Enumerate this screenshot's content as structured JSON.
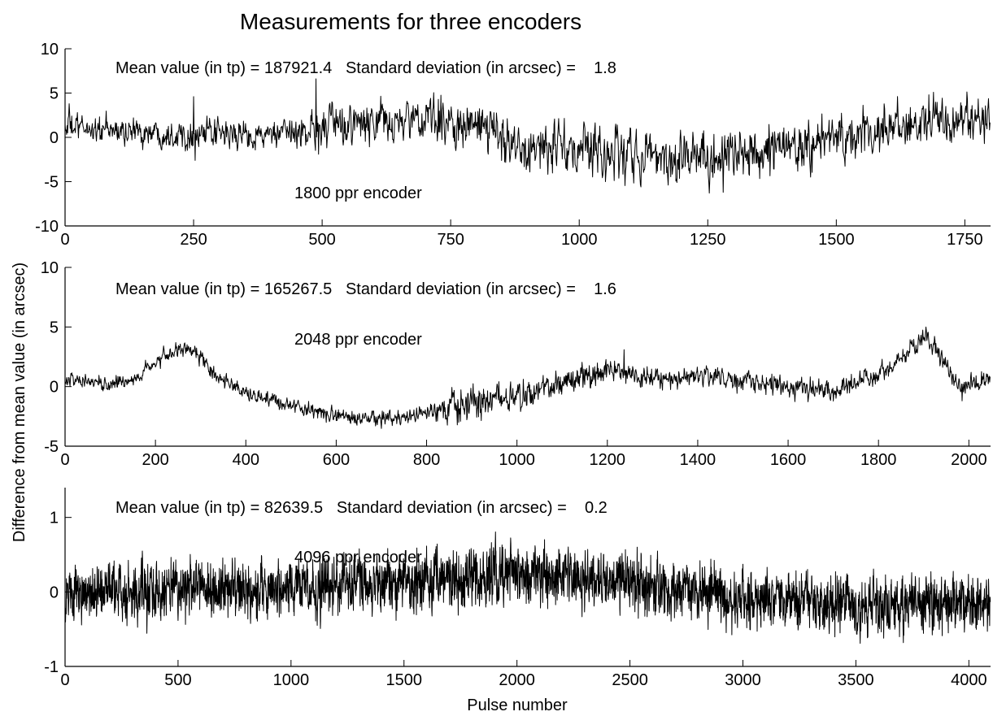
{
  "figure": {
    "title": "Measurements for three encoders",
    "xlabel": "Pulse number",
    "ylabel": "Difference from mean value (in arcsec)"
  },
  "colors": {
    "line": "#000000",
    "axes": "#000000",
    "background": "#ffffff"
  },
  "chart_data": [
    {
      "type": "line",
      "title": "Measurements for three encoders",
      "xlabel": "",
      "ylabel": "",
      "xlim": [
        0,
        1800
      ],
      "ylim": [
        -10,
        10
      ],
      "xticks": [
        0,
        250,
        500,
        750,
        1000,
        1250,
        1500,
        1750
      ],
      "yticks": [
        -10,
        -5,
        0,
        5,
        10
      ],
      "xtick_labels": [
        "0",
        "250",
        "500",
        "750",
        "1000",
        "1250",
        "1500",
        "1750"
      ],
      "ytick_labels": [
        "-10",
        "-5",
        "0",
        "5",
        "10"
      ],
      "grid": false,
      "annotations": {
        "stats": "Mean value (in tp) = 187921.4   Standard deviation (in arcsec) =    1.8",
        "label": "1800 ppr encoder"
      },
      "series": [
        {
          "n_points": 1800,
          "trend": {
            "x": [
              0,
              100,
              240,
              420,
              500,
              600,
              720,
              800,
              900,
              1050,
              1200,
              1300,
              1400,
              1500,
              1600,
              1700,
              1800
            ],
            "y": [
              1.2,
              0.7,
              0.4,
              0.2,
              1.2,
              1.5,
              2.0,
              1.2,
              -1.0,
              -1.8,
              -2.2,
              -2.0,
              -1.2,
              -0.2,
              0.8,
              1.8,
              2.3
            ]
          },
          "noise_amplitude": [
            {
              "x": [
                0,
                450,
                500,
                800,
                1000,
                1800
              ],
              "a": [
                0.9,
                0.9,
                1.4,
                1.5,
                1.8,
                1.5
              ]
            }
          ],
          "spikes": [
            {
              "x": 8,
              "y": 3.8
            },
            {
              "x": 250,
              "y": 4.6
            },
            {
              "x": 253,
              "y": -2.6
            },
            {
              "x": 488,
              "y": 6.6
            },
            {
              "x": 493,
              "y": -1.9
            },
            {
              "x": 1280,
              "y": -6.2
            },
            {
              "x": 1680,
              "y": 4.8
            }
          ]
        }
      ]
    },
    {
      "type": "line",
      "title": "",
      "xlabel": "",
      "ylabel": "",
      "xlim": [
        0,
        2048
      ],
      "ylim": [
        -5,
        10
      ],
      "xticks": [
        0,
        200,
        400,
        600,
        800,
        1000,
        1200,
        1400,
        1600,
        1800,
        2000
      ],
      "yticks": [
        -5,
        0,
        5,
        10
      ],
      "xtick_labels": [
        "0",
        "200",
        "400",
        "600",
        "800",
        "1000",
        "1200",
        "1400",
        "1600",
        "1800",
        "2000"
      ],
      "ytick_labels": [
        "-5",
        "0",
        "5",
        "10"
      ],
      "grid": false,
      "annotations": {
        "stats": "Mean value (in tp) = 165267.5   Standard deviation (in arcsec) =    1.6",
        "label": "2048 ppr encoder"
      },
      "series": [
        {
          "n_points": 2048,
          "trend": {
            "x": [
              0,
              100,
              150,
              200,
              250,
              290,
              330,
              400,
              500,
              600,
              700,
              800,
              900,
              1000,
              1100,
              1200,
              1250,
              1300,
              1400,
              1500,
              1600,
              1700,
              1800,
              1850,
              1900,
              1940,
              1980,
              2000,
              2048
            ],
            "y": [
              0.6,
              0.2,
              0.5,
              2.0,
              3.0,
              2.8,
              1.0,
              -0.6,
              -1.5,
              -2.5,
              -2.8,
              -2.3,
              -1.2,
              -0.8,
              0.2,
              1.4,
              1.2,
              0.7,
              0.9,
              0.4,
              0.0,
              -0.4,
              1.0,
              2.5,
              4.2,
              2.5,
              0.0,
              0.3,
              0.6
            ]
          },
          "noise_amplitude": [
            {
              "x": [
                0,
                800,
                850,
                1100,
                1300,
                2048
              ],
              "a": [
                0.35,
                0.35,
                0.8,
                0.7,
                0.5,
                0.45
              ]
            }
          ],
          "spikes": [
            {
              "x": 1237,
              "y": 3.1
            },
            {
              "x": 1905,
              "y": 5.0
            },
            {
              "x": 1985,
              "y": -1.2
            }
          ]
        }
      ]
    },
    {
      "type": "line",
      "title": "",
      "xlabel": "Pulse number",
      "ylabel": "",
      "xlim": [
        0,
        4096
      ],
      "ylim": [
        -1,
        1.4
      ],
      "xticks": [
        0,
        500,
        1000,
        1500,
        2000,
        2500,
        3000,
        3500,
        4000
      ],
      "yticks": [
        -1,
        0,
        1
      ],
      "xtick_labels": [
        "0",
        "500",
        "1000",
        "1500",
        "2000",
        "2500",
        "3000",
        "3500",
        "4000"
      ],
      "ytick_labels": [
        "-1",
        "0",
        "1"
      ],
      "grid": false,
      "annotations": {
        "stats": "Mean value (in tp) = 82639.5   Standard deviation (in arcsec) =    0.2",
        "label": "4096 ppr encoder"
      },
      "series": [
        {
          "n_points": 4096,
          "trend": {
            "x": [
              0,
              500,
              1000,
              1500,
              2000,
              2500,
              3000,
              3500,
              4096
            ],
            "y": [
              -0.05,
              0.0,
              0.05,
              0.15,
              0.25,
              0.15,
              -0.08,
              -0.18,
              -0.15
            ]
          },
          "noise_amplitude": [
            {
              "x": [
                0,
                4096
              ],
              "a": [
                0.22,
                0.22
              ]
            }
          ],
          "spikes": [
            {
              "x": 2080,
              "y": 0.62
            },
            {
              "x": 1880,
              "y": 0.58
            },
            {
              "x": 3430,
              "y": -0.55
            }
          ]
        }
      ]
    }
  ]
}
